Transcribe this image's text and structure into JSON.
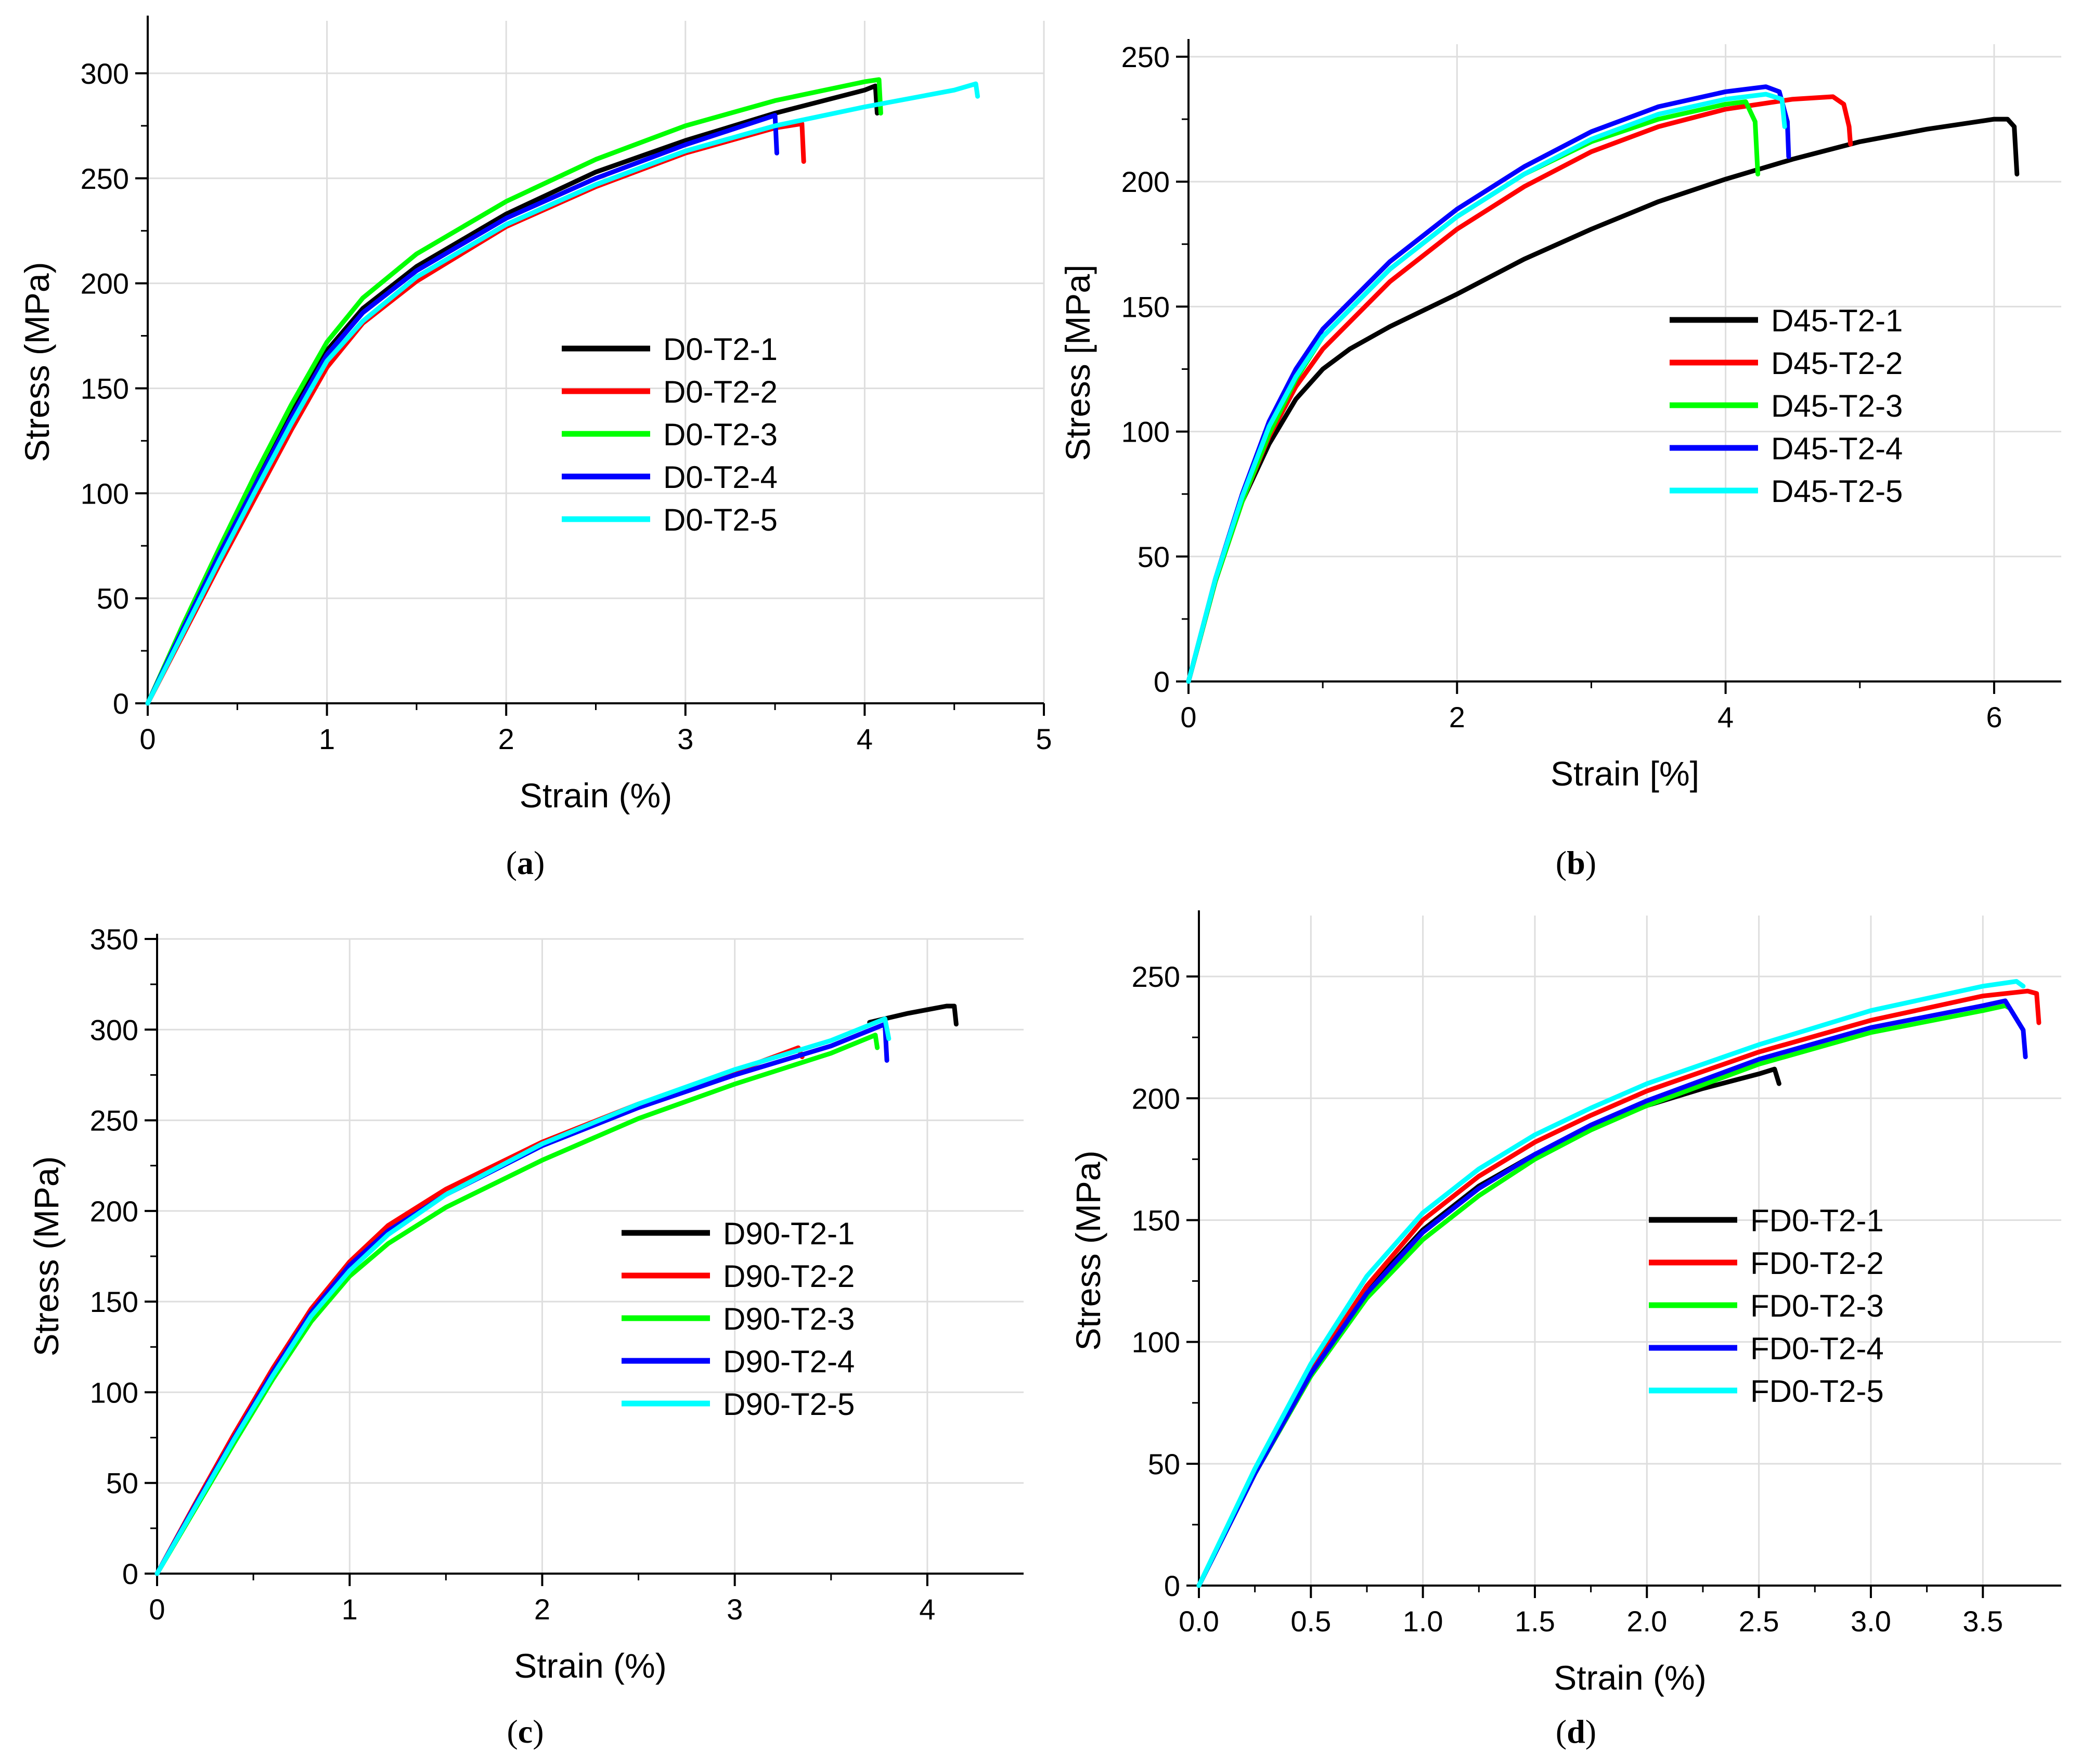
{
  "chart_data": [
    {
      "type": "line",
      "panel_label": "a",
      "xlabel": "Strain (%)",
      "ylabel": "Stress (MPa)",
      "xlim": [
        0,
        5
      ],
      "ylim": [
        0,
        325
      ],
      "xticks": [
        0,
        1,
        2,
        3,
        4,
        5
      ],
      "yticks": [
        0,
        50,
        100,
        150,
        200,
        250,
        300
      ],
      "tick_decimals": 0,
      "grid": true,
      "legend_position": "center",
      "series": [
        {
          "name": "D0-T2-1",
          "color": "#000000",
          "x": [
            0,
            0.2,
            0.4,
            0.6,
            0.8,
            1.0,
            1.2,
            1.5,
            2.0,
            2.5,
            3.0,
            3.5,
            4.0,
            4.06,
            4.07
          ],
          "y": [
            0,
            37,
            72,
            106,
            138,
            168,
            188,
            208,
            233,
            253,
            268,
            281,
            292,
            294,
            281
          ]
        },
        {
          "name": "D0-T2-2",
          "color": "#ff0000",
          "x": [
            0,
            0.2,
            0.4,
            0.6,
            0.8,
            1.0,
            1.2,
            1.5,
            2.0,
            2.5,
            3.0,
            3.5,
            3.65,
            3.66
          ],
          "y": [
            0,
            33,
            66,
            98,
            130,
            160,
            181,
            201,
            227,
            246,
            262,
            274,
            276,
            258
          ]
        },
        {
          "name": "D0-T2-3",
          "color": "#00ff00",
          "x": [
            0,
            0.2,
            0.4,
            0.6,
            0.8,
            1.0,
            1.2,
            1.5,
            2.0,
            2.5,
            3.0,
            3.5,
            4.0,
            4.08,
            4.09
          ],
          "y": [
            0,
            38,
            74,
            109,
            142,
            172,
            193,
            214,
            239,
            259,
            275,
            287,
            296,
            297,
            281
          ]
        },
        {
          "name": "D0-T2-4",
          "color": "#0000ff",
          "x": [
            0,
            0.2,
            0.4,
            0.6,
            0.8,
            1.0,
            1.2,
            1.5,
            2.0,
            2.5,
            3.0,
            3.5,
            3.51
          ],
          "y": [
            0,
            36,
            71,
            104,
            136,
            166,
            186,
            206,
            231,
            250,
            266,
            280,
            262
          ]
        },
        {
          "name": "D0-T2-5",
          "color": "#00ffff",
          "x": [
            0,
            0.2,
            0.4,
            0.6,
            0.8,
            1.0,
            1.2,
            1.5,
            2.0,
            2.5,
            3.0,
            3.5,
            4.0,
            4.5,
            4.62,
            4.63
          ],
          "y": [
            0,
            34,
            68,
            101,
            133,
            163,
            182,
            203,
            228,
            247,
            263,
            275,
            284,
            292,
            295,
            289
          ]
        }
      ]
    },
    {
      "type": "line",
      "panel_label": "b",
      "xlabel": "Strain [%]",
      "ylabel": "Stress [MPa]",
      "xlim": [
        0,
        6.5
      ],
      "ylim": [
        0,
        255
      ],
      "xticks": [
        0,
        2,
        4,
        6
      ],
      "yticks": [
        0,
        50,
        100,
        150,
        200,
        250
      ],
      "tick_decimals": 0,
      "grid": true,
      "legend_position": "right",
      "series": [
        {
          "name": "D45-T2-1",
          "color": "#000000",
          "x": [
            0,
            0.2,
            0.4,
            0.6,
            0.8,
            1.0,
            1.2,
            1.5,
            2.0,
            2.5,
            3.0,
            3.5,
            4.0,
            4.5,
            5.0,
            5.5,
            6.0,
            6.1,
            6.15,
            6.17
          ],
          "y": [
            0,
            40,
            72,
            95,
            113,
            125,
            133,
            142,
            155,
            169,
            181,
            192,
            201,
            209,
            216,
            221,
            225,
            225,
            222,
            203
          ]
        },
        {
          "name": "D45-T2-2",
          "color": "#ff0000",
          "x": [
            0,
            0.2,
            0.4,
            0.6,
            0.8,
            1.0,
            1.5,
            2.0,
            2.5,
            3.0,
            3.5,
            4.0,
            4.5,
            4.8,
            4.88,
            4.92,
            4.93
          ],
          "y": [
            0,
            40,
            72,
            98,
            118,
            133,
            160,
            181,
            198,
            212,
            222,
            229,
            233,
            234,
            231,
            222,
            215
          ]
        },
        {
          "name": "D45-T2-3",
          "color": "#00ff00",
          "x": [
            0,
            0.2,
            0.4,
            0.6,
            0.8,
            1.0,
            1.5,
            2.0,
            2.5,
            3.0,
            3.5,
            4.0,
            4.15,
            4.22,
            4.24
          ],
          "y": [
            0,
            40,
            72,
            99,
            121,
            138,
            165,
            186,
            203,
            216,
            225,
            231,
            232,
            224,
            203
          ]
        },
        {
          "name": "D45-T2-4",
          "color": "#0000ff",
          "x": [
            0,
            0.2,
            0.4,
            0.6,
            0.8,
            1.0,
            1.5,
            2.0,
            2.5,
            3.0,
            3.5,
            4.0,
            4.3,
            4.4,
            4.46,
            4.47
          ],
          "y": [
            0,
            41,
            75,
            104,
            125,
            141,
            168,
            189,
            206,
            220,
            230,
            236,
            238,
            236,
            224,
            210
          ]
        },
        {
          "name": "D45-T2-5",
          "color": "#00ffff",
          "x": [
            0,
            0.2,
            0.4,
            0.6,
            0.8,
            1.0,
            1.5,
            2.0,
            2.5,
            3.0,
            3.5,
            4.0,
            4.3,
            4.42,
            4.44
          ],
          "y": [
            0,
            41,
            74,
            102,
            122,
            138,
            165,
            186,
            203,
            217,
            227,
            233,
            235,
            233,
            222
          ]
        }
      ]
    },
    {
      "type": "line",
      "panel_label": "c",
      "xlabel": "Strain (%)",
      "ylabel": "Stress (MPa)",
      "xlim": [
        0,
        4.5
      ],
      "ylim": [
        0,
        350
      ],
      "xticks": [
        0,
        1,
        2,
        3,
        4
      ],
      "yticks": [
        0,
        50,
        100,
        150,
        200,
        250,
        300,
        350
      ],
      "tick_decimals": 0,
      "grid": true,
      "legend_position": "right",
      "series": [
        {
          "name": "D90-T2-1",
          "color": "#000000",
          "x": [
            3.7,
            3.9,
            4.1,
            4.14,
            4.15
          ],
          "y": [
            304,
            309,
            313,
            313,
            303
          ]
        },
        {
          "name": "D90-T2-2",
          "color": "#ff0000",
          "x": [
            0,
            0.2,
            0.4,
            0.6,
            0.8,
            1.0,
            1.2,
            1.5,
            2.0,
            2.5,
            3.0,
            3.33,
            3.35
          ],
          "y": [
            0,
            39,
            77,
            113,
            146,
            172,
            192,
            212,
            238,
            259,
            277,
            290,
            285
          ]
        },
        {
          "name": "D90-T2-3",
          "color": "#00ff00",
          "x": [
            0,
            0.2,
            0.4,
            0.6,
            0.8,
            1.0,
            1.2,
            1.5,
            2.0,
            2.5,
            3.0,
            3.5,
            3.73,
            3.74
          ],
          "y": [
            0,
            36,
            72,
            107,
            139,
            164,
            182,
            202,
            228,
            251,
            270,
            287,
            297,
            290
          ]
        },
        {
          "name": "D90-T2-4",
          "color": "#0000ff",
          "x": [
            0,
            0.2,
            0.4,
            0.6,
            0.8,
            1.0,
            1.2,
            1.5,
            2.0,
            2.5,
            3.0,
            3.5,
            3.78,
            3.79
          ],
          "y": [
            0,
            38,
            75,
            111,
            144,
            170,
            189,
            209,
            236,
            257,
            275,
            291,
            303,
            283
          ]
        },
        {
          "name": "D90-T2-5",
          "color": "#00ffff",
          "x": [
            0,
            0.2,
            0.4,
            0.6,
            0.8,
            1.0,
            1.2,
            1.5,
            2.0,
            2.5,
            3.0,
            3.5,
            3.78,
            3.8
          ],
          "y": [
            0,
            37,
            74,
            109,
            142,
            167,
            187,
            209,
            237,
            259,
            278,
            294,
            306,
            295
          ]
        }
      ]
    },
    {
      "type": "line",
      "panel_label": "d",
      "xlabel": "Strain (%)",
      "ylabel": "Stress (MPa)",
      "xlim": [
        0,
        3.85
      ],
      "ylim": [
        0,
        275
      ],
      "xticks": [
        0,
        0.5,
        1,
        1.5,
        2,
        2.5,
        3,
        3.5
      ],
      "yticks": [
        0,
        50,
        100,
        150,
        200,
        250
      ],
      "tick_decimals": 1,
      "tick_decimals_y": 0,
      "grid": true,
      "legend_position": "right",
      "series": [
        {
          "name": "FD0-T2-1",
          "color": "#000000",
          "x": [
            0,
            0.25,
            0.5,
            0.75,
            1.0,
            1.25,
            1.5,
            1.75,
            2.0,
            2.25,
            2.5,
            2.57,
            2.59
          ],
          "y": [
            0,
            47,
            88,
            121,
            146,
            164,
            177,
            188,
            197,
            204,
            210,
            212,
            206
          ]
        },
        {
          "name": "FD0-T2-2",
          "color": "#ff0000",
          "x": [
            0,
            0.25,
            0.5,
            0.75,
            1.0,
            1.25,
            1.5,
            1.75,
            2.0,
            2.5,
            3.0,
            3.5,
            3.7,
            3.74,
            3.75
          ],
          "y": [
            0,
            46,
            88,
            123,
            150,
            168,
            182,
            193,
            203,
            219,
            232,
            242,
            244,
            243,
            231
          ]
        },
        {
          "name": "FD0-T2-3",
          "color": "#00ff00",
          "x": [
            0,
            0.25,
            0.5,
            0.75,
            1.0,
            1.25,
            1.5,
            1.75,
            2.0,
            2.5,
            3.0,
            3.5,
            3.6,
            3.62
          ],
          "y": [
            0,
            46,
            86,
            118,
            142,
            160,
            175,
            187,
            197,
            214,
            227,
            236,
            238,
            237
          ]
        },
        {
          "name": "FD0-T2-4",
          "color": "#0000ff",
          "x": [
            0,
            0.25,
            0.5,
            0.75,
            1.0,
            1.25,
            1.5,
            1.75,
            2.0,
            2.5,
            3.0,
            3.5,
            3.6,
            3.64,
            3.68,
            3.69
          ],
          "y": [
            0,
            46,
            87,
            120,
            145,
            163,
            177,
            189,
            199,
            216,
            229,
            238,
            240,
            234,
            228,
            217
          ]
        },
        {
          "name": "FD0-T2-5",
          "color": "#00ffff",
          "x": [
            0,
            0.25,
            0.5,
            0.75,
            1.0,
            1.25,
            1.5,
            1.75,
            2.0,
            2.5,
            3.0,
            3.5,
            3.65,
            3.68
          ],
          "y": [
            0,
            48,
            91,
            127,
            153,
            171,
            185,
            196,
            206,
            222,
            236,
            246,
            248,
            246
          ]
        }
      ]
    }
  ]
}
